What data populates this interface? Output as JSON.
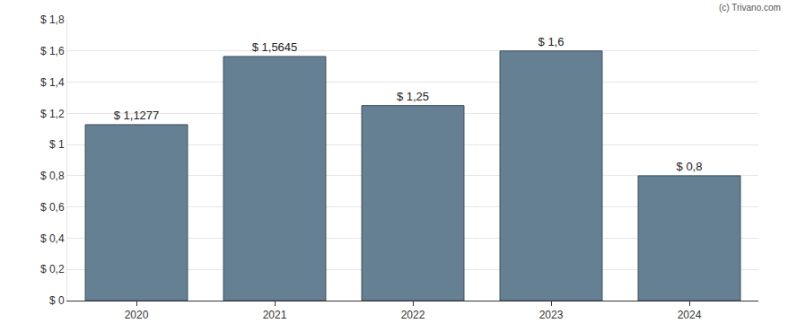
{
  "chart_data": {
    "type": "bar",
    "categories": [
      "2020",
      "2021",
      "2022",
      "2023",
      "2024"
    ],
    "values": [
      1.1277,
      1.5645,
      1.25,
      1.6,
      0.8
    ],
    "value_labels": [
      "$ 1,1277",
      "$ 1,5645",
      "$ 1,25",
      "$ 1,6",
      "$ 0,8"
    ],
    "data_labels": true,
    "color": "#657f93",
    "ylim": [
      0,
      1.8
    ],
    "yticks": [
      {
        "value": 0,
        "label": "$ 0"
      },
      {
        "value": 0.2,
        "label": "$ 0,2"
      },
      {
        "value": 0.4,
        "label": "$ 0,4"
      },
      {
        "value": 0.6,
        "label": "$ 0,6"
      },
      {
        "value": 0.8,
        "label": "$ 0,8"
      },
      {
        "value": 1,
        "label": "$ 1"
      },
      {
        "value": 1.2,
        "label": "$ 1,2"
      },
      {
        "value": 1.4,
        "label": "$ 1,4"
      },
      {
        "value": 1.6,
        "label": "$ 1,6"
      },
      {
        "value": 1.8,
        "label": "$ 1,8"
      }
    ],
    "grid": true,
    "annotations": [
      "(c) Trivano.com"
    ]
  }
}
